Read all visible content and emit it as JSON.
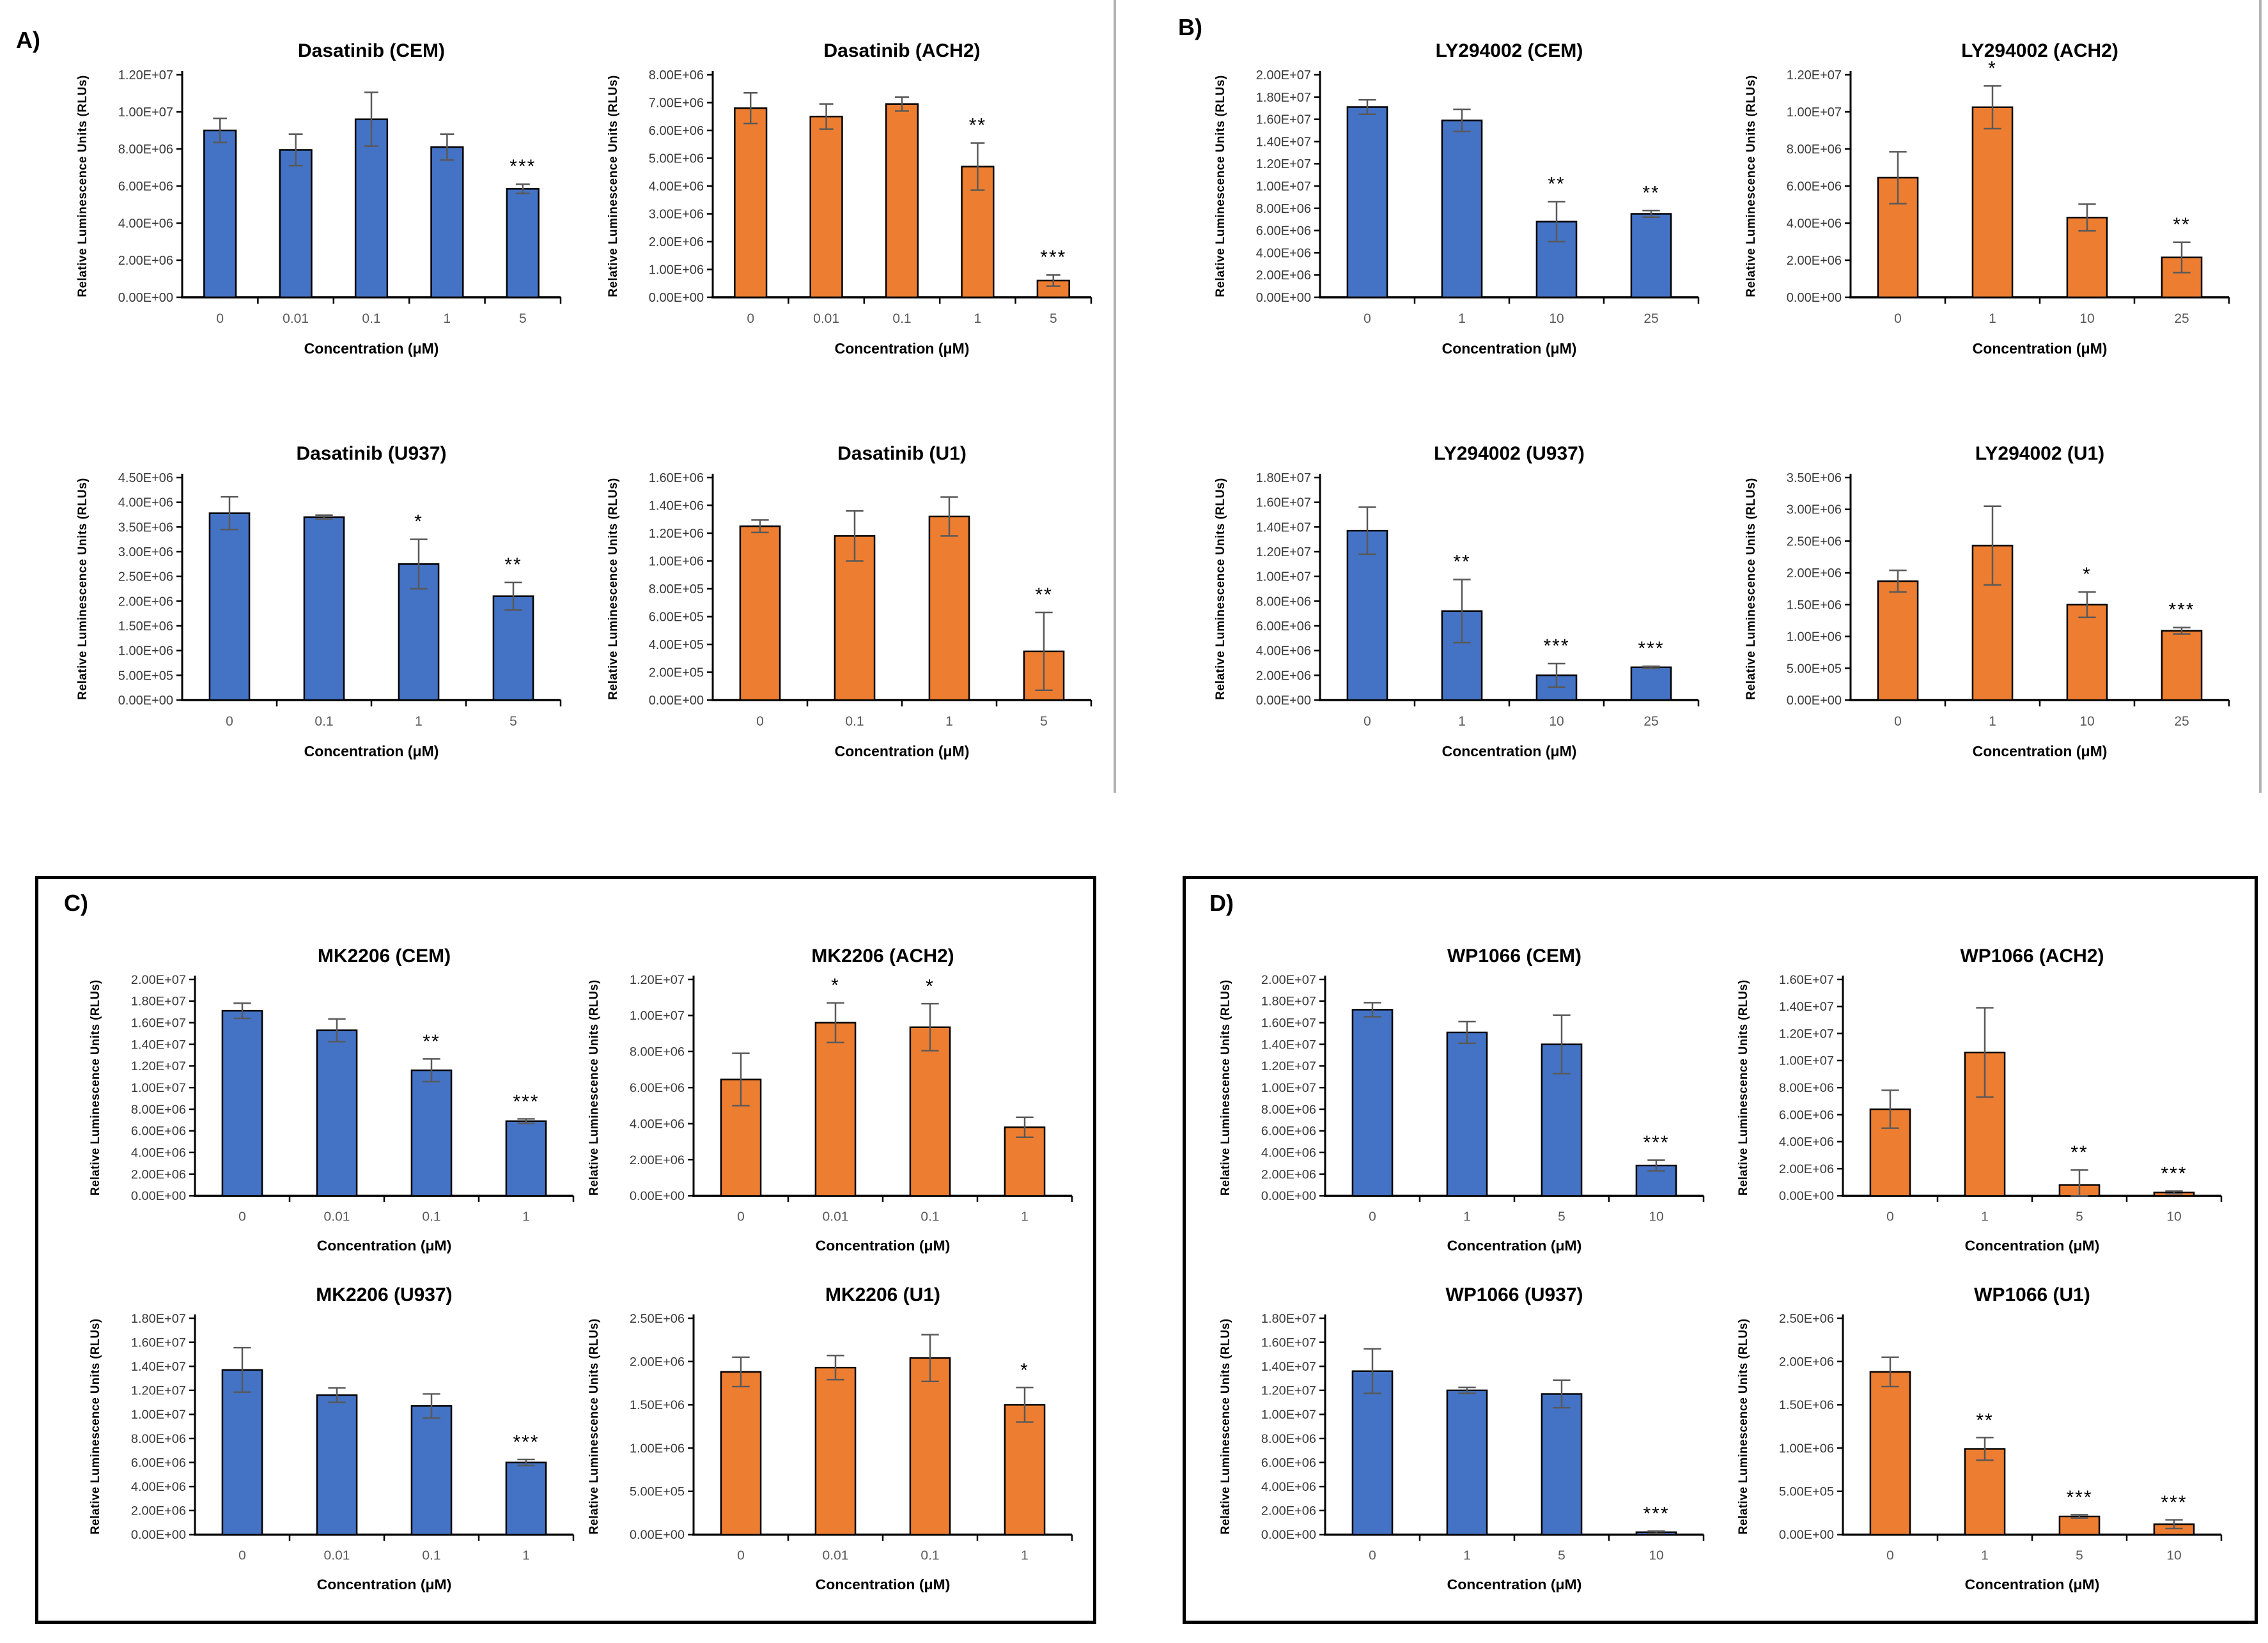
{
  "figure": {
    "ylabel": "Relative Luminescence Units (RLUs)",
    "xlabel": "Concentration (μM)",
    "colors": {
      "blue": "#4472C4",
      "orange": "#ED7D31",
      "error_bar": "#595959",
      "axis": "#000000"
    }
  },
  "panels": [
    {
      "id": "A",
      "label": "A)",
      "drug": "Dasatinib",
      "boxed": false
    },
    {
      "id": "B",
      "label": "B)",
      "drug": "LY294002",
      "boxed": false
    },
    {
      "id": "C",
      "label": "C)",
      "drug": "MK2206",
      "boxed": true
    },
    {
      "id": "D",
      "label": "D)",
      "drug": "WP1066",
      "boxed": true
    }
  ],
  "chart_data": [
    {
      "type": "bar",
      "panel": "A",
      "title": "Dasatinib (CEM)",
      "color": "blue",
      "ylabel": "Relative Luminescence Units (RLUs)",
      "xlabel": "Concentration (μM)",
      "ylim": [
        0,
        12000000.0
      ],
      "ytick_step": 2000000.0,
      "grid": false,
      "legend": "none",
      "categories": [
        "0",
        "0.01",
        "0.1",
        "1",
        "5"
      ],
      "values": [
        9000000.0,
        7950000.0,
        9600000.0,
        8100000.0,
        5850000.0
      ],
      "errors": [
        650000.0,
        850000.0,
        1450000.0,
        700000.0,
        250000.0
      ],
      "significance": [
        "",
        "",
        "",
        "",
        "***"
      ]
    },
    {
      "type": "bar",
      "panel": "A",
      "title": "Dasatinib (ACH2)",
      "color": "orange",
      "ylabel": "Relative Luminescence Units (RLUs)",
      "xlabel": "Concentration (μM)",
      "ylim": [
        0,
        8000000.0
      ],
      "ytick_step": 1000000.0,
      "grid": false,
      "legend": "none",
      "categories": [
        "0",
        "0.01",
        "0.1",
        "1",
        "5"
      ],
      "values": [
        6800000.0,
        6500000.0,
        6950000.0,
        4700000.0,
        600000.0
      ],
      "errors": [
        550000.0,
        450000.0,
        250000.0,
        850000.0,
        200000.0
      ],
      "significance": [
        "",
        "",
        "",
        "**",
        "***"
      ]
    },
    {
      "type": "bar",
      "panel": "A",
      "title": "Dasatinib (U937)",
      "color": "blue",
      "ylabel": "Relative Luminescence Units (RLUs)",
      "xlabel": "Concentration (μM)",
      "ylim": [
        0,
        4500000.0
      ],
      "ytick_step": 500000.0,
      "grid": false,
      "legend": "none",
      "categories": [
        "0",
        "0.1",
        "1",
        "5"
      ],
      "values": [
        3780000.0,
        3700000.0,
        2750000.0,
        2100000.0
      ],
      "errors": [
        330000.0,
        40000.0,
        500000.0,
        280000.0
      ],
      "significance": [
        "",
        "",
        "*",
        "**"
      ]
    },
    {
      "type": "bar",
      "panel": "A",
      "title": "Dasatinib (U1)",
      "color": "orange",
      "ylabel": "Relative Luminescence Units (RLUs)",
      "xlabel": "Concentration (μM)",
      "ylim": [
        0,
        1600000.0
      ],
      "ytick_step": 200000.0,
      "grid": false,
      "legend": "none",
      "categories": [
        "0",
        "0.1",
        "1",
        "5"
      ],
      "values": [
        1250000.0,
        1180000.0,
        1320000.0,
        350000.0
      ],
      "errors": [
        45000.0,
        180000.0,
        140000.0,
        280000.0
      ],
      "significance": [
        "",
        "",
        "",
        "**"
      ]
    },
    {
      "type": "bar",
      "panel": "B",
      "title": "LY294002 (CEM)",
      "color": "blue",
      "ylabel": "Relative Luminescence Units (RLUs)",
      "xlabel": "Concentration (μM)",
      "ylim": [
        0,
        20000000.0
      ],
      "ytick_step": 2000000.0,
      "grid": false,
      "legend": "none",
      "categories": [
        "0",
        "1",
        "10",
        "25"
      ],
      "values": [
        17100000.0,
        15900000.0,
        6800000.0,
        7500000.0
      ],
      "errors": [
        650000.0,
        1000000.0,
        1800000.0,
        300000.0
      ],
      "significance": [
        "",
        "",
        "**",
        "**"
      ]
    },
    {
      "type": "bar",
      "panel": "B",
      "title": "LY294002 (ACH2)",
      "color": "orange",
      "ylabel": "Relative Luminescence Units (RLUs)",
      "xlabel": "Concentration (μM)",
      "ylim": [
        0,
        12000000.0
      ],
      "ytick_step": 2000000.0,
      "grid": false,
      "legend": "none",
      "categories": [
        "0",
        "1",
        "10",
        "25"
      ],
      "values": [
        6450000.0,
        10250000.0,
        4300000.0,
        2150000.0
      ],
      "errors": [
        1400000.0,
        1150000.0,
        720000.0,
        820000.0
      ],
      "significance": [
        "",
        "*",
        "",
        "**"
      ]
    },
    {
      "type": "bar",
      "panel": "B",
      "title": "LY294002 (U937)",
      "color": "blue",
      "ylabel": "Relative Luminescence Units (RLUs)",
      "xlabel": "Concentration (μM)",
      "ylim": [
        0,
        18000000.0
      ],
      "ytick_step": 2000000.0,
      "grid": false,
      "legend": "none",
      "categories": [
        "0",
        "1",
        "10",
        "25"
      ],
      "values": [
        13700000.0,
        7200000.0,
        2000000.0,
        2650000.0
      ],
      "errors": [
        1900000.0,
        2550000.0,
        950000.0,
        80000.0
      ],
      "significance": [
        "",
        "**",
        "***",
        "***"
      ]
    },
    {
      "type": "bar",
      "panel": "B",
      "title": "LY294002 (U1)",
      "color": "orange",
      "ylabel": "Relative Luminescence Units (RLUs)",
      "xlabel": "Concentration (μM)",
      "ylim": [
        0,
        3500000.0
      ],
      "ytick_step": 500000.0,
      "grid": false,
      "legend": "none",
      "categories": [
        "0",
        "1",
        "10",
        "25"
      ],
      "values": [
        1870000.0,
        2430000.0,
        1500000.0,
        1090000.0
      ],
      "errors": [
        170000.0,
        620000.0,
        200000.0,
        50000.0
      ],
      "significance": [
        "",
        "",
        "*",
        "***"
      ]
    },
    {
      "type": "bar",
      "panel": "C",
      "title": "MK2206 (CEM)",
      "color": "blue",
      "ylabel": "Relative Luminescence Units (RLUs)",
      "xlabel": "Concentration (μM)",
      "ylim": [
        0,
        20000000.0
      ],
      "ytick_step": 2000000.0,
      "grid": false,
      "legend": "none",
      "categories": [
        "0",
        "0.01",
        "0.1",
        "1"
      ],
      "values": [
        17100000.0,
        15300000.0,
        11600000.0,
        6900000.0
      ],
      "errors": [
        700000.0,
        1050000.0,
        1050000.0,
        200000.0
      ],
      "significance": [
        "",
        "",
        "**",
        "***"
      ]
    },
    {
      "type": "bar",
      "panel": "C",
      "title": "MK2206 (ACH2)",
      "color": "orange",
      "ylabel": "Relative Luminescence Units (RLUs)",
      "xlabel": "Concentration (μM)",
      "ylim": [
        0,
        12000000.0
      ],
      "ytick_step": 2000000.0,
      "grid": false,
      "legend": "none",
      "categories": [
        "0",
        "0.01",
        "0.1",
        "1"
      ],
      "values": [
        6450000.0,
        9600000.0,
        9350000.0,
        3800000.0
      ],
      "errors": [
        1450000.0,
        1100000.0,
        1300000.0,
        550000.0
      ],
      "significance": [
        "",
        "*",
        "*",
        ""
      ]
    },
    {
      "type": "bar",
      "panel": "C",
      "title": "MK2206 (U937)",
      "color": "blue",
      "ylabel": "Relative Luminescence Units (RLUs)",
      "xlabel": "Concentration (μM)",
      "ylim": [
        0,
        18000000.0
      ],
      "ytick_step": 2000000.0,
      "grid": false,
      "legend": "none",
      "categories": [
        "0",
        "0.01",
        "0.1",
        "1"
      ],
      "values": [
        13700000.0,
        11600000.0,
        10700000.0,
        6000000.0
      ],
      "errors": [
        1850000.0,
        600000.0,
        1000000.0,
        250000.0
      ],
      "significance": [
        "",
        "",
        "",
        "***"
      ]
    },
    {
      "type": "bar",
      "panel": "C",
      "title": "MK2206 (U1)",
      "color": "orange",
      "ylabel": "Relative Luminescence Units (RLUs)",
      "xlabel": "Concentration (μM)",
      "ylim": [
        0,
        2500000.0
      ],
      "ytick_step": 500000.0,
      "grid": false,
      "legend": "none",
      "categories": [
        "0",
        "0.01",
        "0.1",
        "1"
      ],
      "values": [
        1880000.0,
        1930000.0,
        2040000.0,
        1500000.0
      ],
      "errors": [
        170000.0,
        140000.0,
        270000.0,
        200000.0
      ],
      "significance": [
        "",
        "",
        "",
        "*"
      ]
    },
    {
      "type": "bar",
      "panel": "D",
      "title": "WP1066 (CEM)",
      "color": "blue",
      "ylabel": "Relative Luminescence Units (RLUs)",
      "xlabel": "Concentration (μM)",
      "ylim": [
        0,
        20000000.0
      ],
      "ytick_step": 2000000.0,
      "grid": false,
      "legend": "none",
      "categories": [
        "0",
        "1",
        "5",
        "10"
      ],
      "values": [
        17200000.0,
        15100000.0,
        14000000.0,
        2800000.0
      ],
      "errors": [
        650000.0,
        1000000.0,
        2700000.0,
        500000.0
      ],
      "significance": [
        "",
        "",
        "",
        "***"
      ]
    },
    {
      "type": "bar",
      "panel": "D",
      "title": "WP1066 (ACH2)",
      "color": "orange",
      "ylabel": "Relative Luminescence Units (RLUs)",
      "xlabel": "Concentration (μM)",
      "ylim": [
        0,
        16000000.0
      ],
      "ytick_step": 2000000.0,
      "grid": false,
      "legend": "none",
      "categories": [
        "0",
        "1",
        "5",
        "10"
      ],
      "values": [
        6400000.0,
        10600000.0,
        800000.0,
        250000.0
      ],
      "errors": [
        1400000.0,
        3300000.0,
        1100000.0,
        100000.0
      ],
      "significance": [
        "",
        "",
        "**",
        "***"
      ]
    },
    {
      "type": "bar",
      "panel": "D",
      "title": "WP1066 (U937)",
      "color": "blue",
      "ylabel": "Relative Luminescence Units (RLUs)",
      "xlabel": "Concentration (μM)",
      "ylim": [
        0,
        18000000.0
      ],
      "ytick_step": 2000000.0,
      "grid": false,
      "legend": "none",
      "categories": [
        "0",
        "1",
        "5",
        "10"
      ],
      "values": [
        13600000.0,
        12000000.0,
        11700000.0,
        200000.0
      ],
      "errors": [
        1850000.0,
        250000.0,
        1150000.0,
        100000.0
      ],
      "significance": [
        "",
        "",
        "",
        "***"
      ]
    },
    {
      "type": "bar",
      "panel": "D",
      "title": "WP1066 (U1)",
      "color": "orange",
      "ylabel": "Relative Luminescence Units (RLUs)",
      "xlabel": "Concentration (μM)",
      "ylim": [
        0,
        2500000.0
      ],
      "ytick_step": 500000.0,
      "grid": false,
      "legend": "none",
      "categories": [
        "0",
        "1",
        "5",
        "10"
      ],
      "values": [
        1880000.0,
        990000.0,
        210000.0,
        120000.0
      ],
      "errors": [
        170000.0,
        130000.0,
        20000.0,
        50000.0
      ],
      "significance": [
        "",
        "**",
        "***",
        "***"
      ]
    }
  ]
}
